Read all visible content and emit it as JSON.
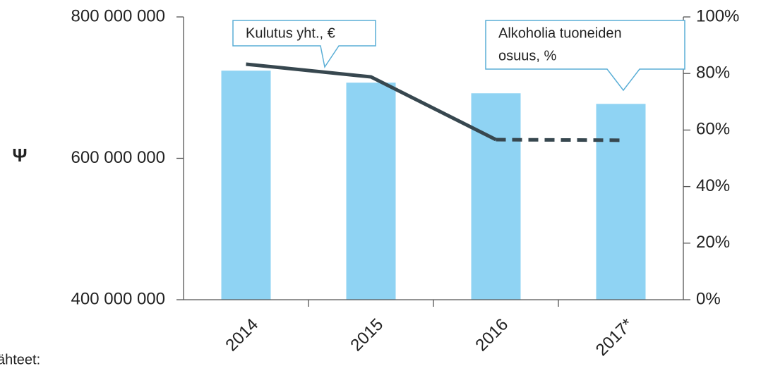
{
  "chart_data": {
    "type": "bar_line",
    "y_label": "Ψ",
    "footnote": "ähteet:",
    "categories": [
      "2014",
      "2015",
      "2016",
      "2017*"
    ],
    "series": [
      {
        "name": "Kulutus yht., €",
        "type": "bar",
        "color": "#8fd3f3",
        "values": [
          724000000,
          707000000,
          692000000,
          677000000
        ]
      },
      {
        "name": "Alkoholia tuoneiden osuus, %",
        "type": "line",
        "axis": "y2",
        "color": "#37474f",
        "values": [
          83.3,
          78.8,
          56.6,
          56.4
        ],
        "dash_from_index": 2
      }
    ],
    "annotations": [
      {
        "lines": [
          "Kulutus yht., €"
        ]
      },
      {
        "lines": [
          "Alkoholia tuoneiden",
          "osuus, %"
        ]
      }
    ],
    "ylim": [
      400000000,
      800000000
    ],
    "yticks": [
      {
        "value": 400000000,
        "label": "400 000 000"
      },
      {
        "value": 600000000,
        "label": "600 000 000"
      },
      {
        "value": 800000000,
        "label": "800 000 000"
      }
    ],
    "y2lim": [
      0,
      100
    ],
    "y2ticks": [
      {
        "value": 0,
        "label": "0%"
      },
      {
        "value": 20,
        "label": "20%"
      },
      {
        "value": 40,
        "label": "40%"
      },
      {
        "value": 60,
        "label": "60%"
      },
      {
        "value": 80,
        "label": "80%"
      },
      {
        "value": 100,
        "label": "100%"
      }
    ],
    "grid": false
  }
}
